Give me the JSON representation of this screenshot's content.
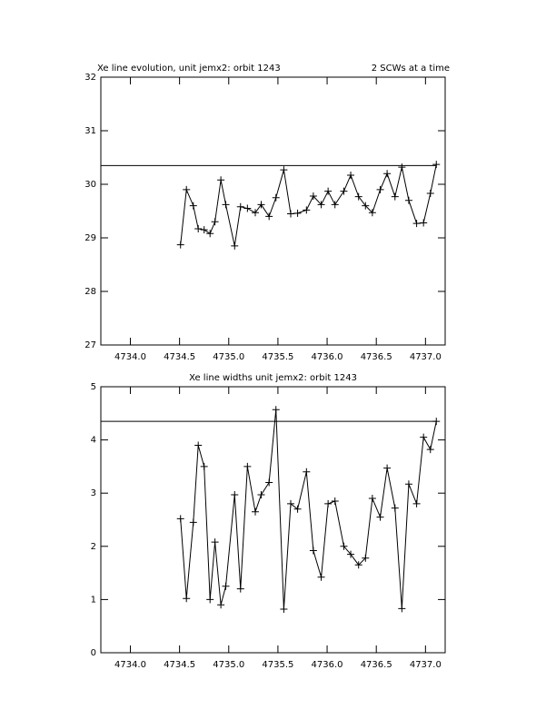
{
  "chart_data": [
    {
      "type": "line",
      "title": "Xe line evolution, unit jemx2: orbit 1243",
      "subtitle": "2 SCWs at a time",
      "x": [
        4734.51,
        4734.57,
        4734.64,
        4734.69,
        4734.75,
        4734.81,
        4734.86,
        4734.92,
        4734.97,
        4735.06,
        4735.12,
        4735.19,
        4735.27,
        4735.33,
        4735.41,
        4735.48,
        4735.56,
        4735.63,
        4735.7,
        4735.79,
        4735.86,
        4735.94,
        4736.01,
        4736.08,
        4736.17,
        4736.24,
        4736.32,
        4736.39,
        4736.46,
        4736.54,
        4736.61,
        4736.69,
        4736.76,
        4736.83,
        4736.91,
        4736.98,
        4737.05,
        4737.11
      ],
      "series": [
        {
          "color": "#000000",
          "values": [
            28.87,
            29.9,
            29.6,
            29.17,
            29.15,
            29.08,
            29.3,
            30.08,
            29.62,
            28.85,
            29.58,
            29.55,
            29.47,
            29.62,
            29.4,
            29.75,
            30.27,
            29.45,
            29.46,
            29.52,
            29.78,
            29.62,
            29.87,
            29.62,
            29.87,
            30.17,
            29.77,
            29.6,
            29.47,
            29.9,
            30.2,
            29.77,
            30.32,
            29.7,
            29.27,
            29.28,
            29.83,
            30.37
          ]
        }
      ],
      "hline": 30.35,
      "xlim": [
        4733.7,
        4737.2
      ],
      "ylim": [
        27,
        32
      ],
      "xticks": [
        {
          "value": 4734,
          "label": "4734.0"
        },
        4734.5,
        {
          "value": 4735,
          "label": "4735.0"
        },
        4735.5,
        {
          "value": 4736,
          "label": "4736.0"
        },
        4736.5,
        {
          "value": 4737,
          "label": "4737.0"
        }
      ],
      "yticks": [
        27,
        28,
        29,
        30,
        31,
        32
      ]
    },
    {
      "type": "line",
      "title": "Xe line widths unit jemx2: orbit 1243",
      "x": [
        4734.51,
        4734.57,
        4734.64,
        4734.69,
        4734.75,
        4734.81,
        4734.86,
        4734.92,
        4734.97,
        4735.06,
        4735.12,
        4735.19,
        4735.27,
        4735.33,
        4735.41,
        4735.48,
        4735.56,
        4735.63,
        4735.7,
        4735.79,
        4735.86,
        4735.94,
        4736.01,
        4736.08,
        4736.17,
        4736.24,
        4736.32,
        4736.39,
        4736.46,
        4736.54,
        4736.61,
        4736.69,
        4736.76,
        4736.83,
        4736.91,
        4736.98,
        4737.05,
        4737.11
      ],
      "series": [
        {
          "color": "#000000",
          "values": [
            2.52,
            1.02,
            2.45,
            3.9,
            3.5,
            1.0,
            2.08,
            0.9,
            1.25,
            2.97,
            1.2,
            3.5,
            2.65,
            2.97,
            3.2,
            4.57,
            0.82,
            2.8,
            2.7,
            3.4,
            1.92,
            1.42,
            2.8,
            2.85,
            2.0,
            1.85,
            1.65,
            1.78,
            2.9,
            2.55,
            3.47,
            2.72,
            0.83,
            3.17,
            2.8,
            4.05,
            3.82,
            4.35
          ]
        }
      ],
      "hline": 4.35,
      "xlim": [
        4733.7,
        4737.2
      ],
      "ylim": [
        0,
        5
      ],
      "xticks": [
        {
          "value": 4734,
          "label": "4734.0"
        },
        4734.5,
        {
          "value": 4735,
          "label": "4735.0"
        },
        4735.5,
        {
          "value": 4736,
          "label": "4736.0"
        },
        4736.5,
        {
          "value": 4737,
          "label": "4737.0"
        }
      ],
      "yticks": [
        0,
        1,
        2,
        3,
        4,
        5
      ]
    }
  ]
}
